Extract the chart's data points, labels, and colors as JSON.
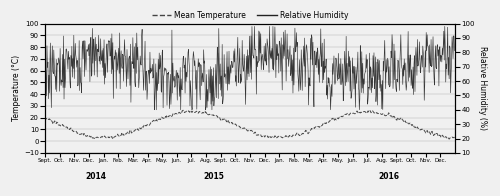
{
  "legend_temp": "Mean Temperature",
  "legend_rh": "Relative Humidity",
  "ylabel_left": "Temperature (°C)",
  "ylabel_right": "Relative Humidity (%)",
  "ylim_left": [
    -10,
    100
  ],
  "ylim_right": [
    10,
    100
  ],
  "yticks_left": [
    -10,
    0,
    10,
    20,
    30,
    40,
    50,
    60,
    70,
    80,
    90,
    100
  ],
  "yticks_right": [
    10,
    20,
    30,
    40,
    50,
    60,
    70,
    80,
    90,
    100
  ],
  "x_labels": [
    "Sept.",
    "Oct.",
    "Nov.",
    "Dec.",
    "Jan.",
    "Feb.",
    "Mar.",
    "Apr.",
    "May.",
    "Jun.",
    "Jul.",
    "Aug.",
    "Sept.",
    "Oct.",
    "Nov.",
    "Dec.",
    "Jan.",
    "Feb.",
    "Mar.",
    "Apr.",
    "May.",
    "Jun.",
    "Jul.",
    "Aug.",
    "Sept.",
    "Oct.",
    "Nov.",
    "Dec."
  ],
  "year_labels": [
    [
      "2014",
      1
    ],
    [
      "2015",
      9
    ],
    [
      "2016",
      21
    ]
  ],
  "background_color": "#f0f0f0",
  "line_color_temp": "#444444",
  "line_color_rh": "#222222",
  "total_months": 28,
  "n_points": 840
}
